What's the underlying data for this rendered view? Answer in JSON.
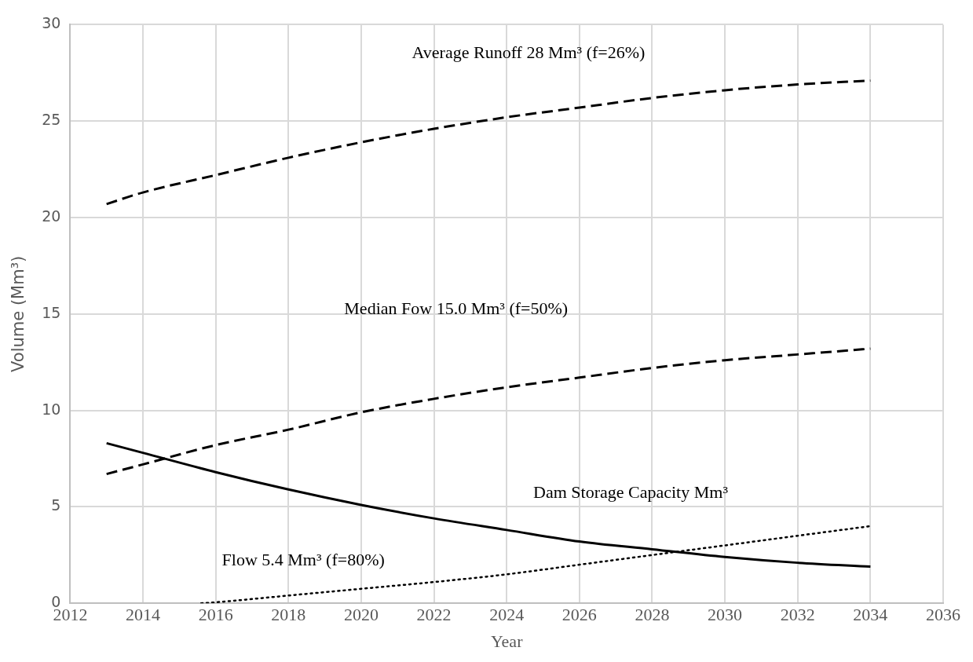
{
  "chart_data": {
    "type": "line",
    "xlabel": "Year",
    "ylabel": "Volume (Mm³)",
    "xlim": [
      2012,
      2036
    ],
    "xticks": [
      2012,
      2014,
      2016,
      2018,
      2020,
      2022,
      2024,
      2026,
      2028,
      2030,
      2032,
      2034,
      2036
    ],
    "ylim": [
      0,
      30
    ],
    "yticks": [
      0,
      5,
      10,
      15,
      20,
      25,
      30
    ],
    "grid": true,
    "legend": false,
    "marker": "none",
    "series": [
      {
        "color": "#000000",
        "line_style": "dashed",
        "x": [
          2013,
          2014,
          2016,
          2018,
          2020,
          2022,
          2024,
          2026,
          2028,
          2030,
          2032,
          2034
        ],
        "values": [
          20.7,
          21.3,
          22.2,
          23.1,
          23.9,
          24.6,
          25.2,
          25.7,
          26.2,
          26.6,
          26.9,
          27.1
        ]
      },
      {
        "color": "#000000",
        "line_style": "dashed",
        "x": [
          2013,
          2014,
          2016,
          2018,
          2020,
          2022,
          2024,
          2026,
          2028,
          2030,
          2032,
          2034
        ],
        "values": [
          6.7,
          7.2,
          8.2,
          9.0,
          9.9,
          10.6,
          11.2,
          11.7,
          12.2,
          12.6,
          12.9,
          13.2
        ]
      },
      {
        "color": "#000000",
        "line_style": "solid",
        "x": [
          2013,
          2014,
          2016,
          2018,
          2020,
          2022,
          2024,
          2026,
          2028,
          2030,
          2032,
          2034
        ],
        "values": [
          8.3,
          7.8,
          6.8,
          5.9,
          5.1,
          4.4,
          3.8,
          3.2,
          2.8,
          2.4,
          2.1,
          1.9
        ]
      },
      {
        "color": "#000000",
        "line_style": "dotted",
        "x": [
          2015.6,
          2016,
          2018,
          2020,
          2022,
          2024,
          2026,
          2028,
          2030,
          2032,
          2034
        ],
        "values": [
          0,
          0.05,
          0.4,
          0.75,
          1.1,
          1.5,
          2.0,
          2.5,
          3.0,
          3.5,
          4.0
        ]
      }
    ],
    "annotations": [
      "Average Runoff 28 Mm³ (f=26%)",
      "Median Fow 15.0 Mm³ (f=50%)",
      "Dam Storage Capacity Mm³",
      "Flow 5.4 Mm³ (f=80%)"
    ]
  }
}
